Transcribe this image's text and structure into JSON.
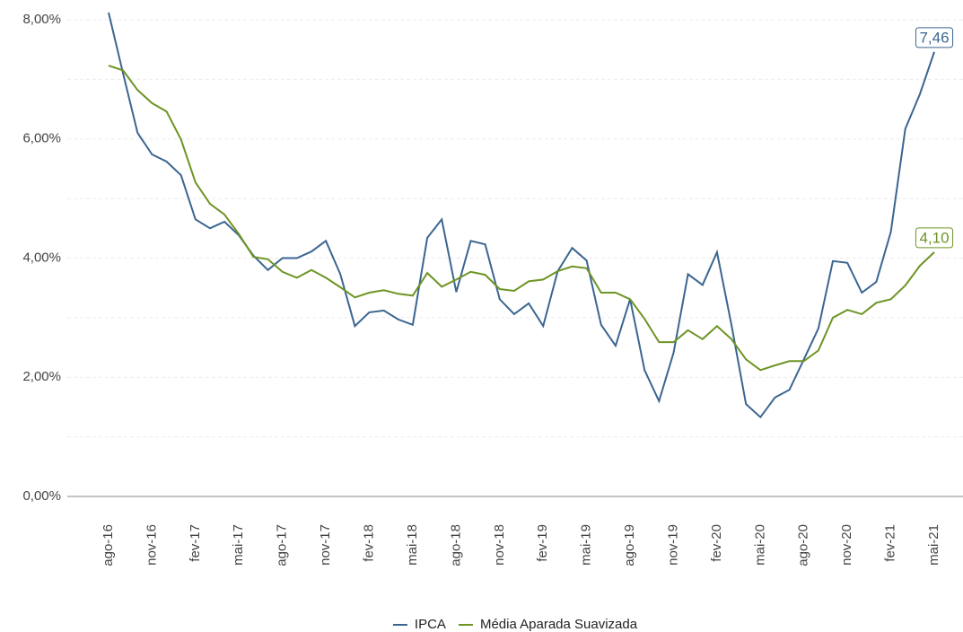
{
  "chart_data": {
    "type": "line",
    "categories": [
      "ago-16",
      null,
      null,
      "nov-16",
      null,
      null,
      "fev-17",
      null,
      null,
      "mai-17",
      null,
      null,
      "ago-17",
      null,
      null,
      "nov-17",
      null,
      null,
      "fev-18",
      null,
      null,
      "mai-18",
      null,
      null,
      "ago-18",
      null,
      null,
      "nov-18",
      null,
      null,
      "fev-19",
      null,
      null,
      "mai-19",
      null,
      null,
      "ago-19",
      null,
      null,
      "nov-19",
      null,
      null,
      "fev-20",
      null,
      null,
      "mai-20",
      null,
      null,
      "ago-20",
      null,
      null,
      "nov-20",
      null,
      null,
      "fev-21",
      null,
      null,
      "mai-21"
    ],
    "series": [
      {
        "name": "IPCA",
        "color": "#3b6591",
        "values": [
          8.12,
          7.1,
          6.1,
          5.74,
          5.62,
          5.39,
          4.65,
          4.5,
          4.61,
          4.38,
          4.04,
          3.8,
          4.0,
          4.0,
          4.11,
          4.29,
          3.73,
          2.86,
          3.09,
          3.12,
          2.97,
          2.88,
          4.34,
          4.65,
          3.43,
          4.29,
          4.23,
          3.31,
          3.06,
          3.24,
          2.86,
          3.78,
          4.17,
          3.96,
          2.88,
          2.53,
          3.31,
          2.12,
          1.6,
          2.41,
          3.73,
          3.55,
          4.1,
          2.88,
          1.55,
          1.33,
          1.66,
          1.79,
          2.3,
          2.82,
          3.95,
          3.92,
          3.42,
          3.6,
          4.44,
          6.17,
          6.75,
          7.46
        ],
        "value_labels": [
          null,
          null,
          null,
          null,
          null,
          null,
          null,
          null,
          null,
          null,
          null,
          null,
          null,
          null,
          null,
          null,
          null,
          null,
          null,
          null,
          null,
          null,
          null,
          null,
          null,
          null,
          null,
          null,
          null,
          null,
          null,
          null,
          null,
          null,
          null,
          null,
          null,
          null,
          null,
          null,
          null,
          null,
          null,
          null,
          null,
          null,
          null,
          null,
          null,
          null,
          null,
          null,
          null,
          null,
          null,
          null,
          null,
          "7,46"
        ]
      },
      {
        "name": "Média Aparada Suavizada",
        "color": "#6e9424",
        "values": [
          7.23,
          7.15,
          6.82,
          6.6,
          6.46,
          5.99,
          5.27,
          4.91,
          4.73,
          4.4,
          4.02,
          3.98,
          3.77,
          3.67,
          3.8,
          3.67,
          3.51,
          3.34,
          3.42,
          3.46,
          3.4,
          3.37,
          3.75,
          3.52,
          3.64,
          3.77,
          3.72,
          3.48,
          3.45,
          3.61,
          3.64,
          3.78,
          3.86,
          3.83,
          3.42,
          3.42,
          3.31,
          2.98,
          2.59,
          2.59,
          2.79,
          2.64,
          2.86,
          2.64,
          2.3,
          2.12,
          2.2,
          2.27,
          2.27,
          2.45,
          3.0,
          3.13,
          3.06,
          3.25,
          3.31,
          3.54,
          3.87,
          4.1
        ],
        "value_labels": [
          null,
          null,
          null,
          null,
          null,
          null,
          null,
          null,
          null,
          null,
          null,
          null,
          null,
          null,
          null,
          null,
          null,
          null,
          null,
          null,
          null,
          null,
          null,
          null,
          null,
          null,
          null,
          null,
          null,
          null,
          null,
          null,
          null,
          null,
          null,
          null,
          null,
          null,
          null,
          null,
          null,
          null,
          null,
          null,
          null,
          null,
          null,
          null,
          null,
          null,
          null,
          null,
          null,
          null,
          null,
          null,
          null,
          "4,10"
        ]
      }
    ],
    "ylim": [
      0,
      8.2
    ],
    "yticks": [
      {
        "value": 0,
        "label": "0,00%"
      },
      {
        "value": 2,
        "label": "2,00%"
      },
      {
        "value": 4,
        "label": "4,00%"
      },
      {
        "value": 6,
        "label": "6,00%"
      },
      {
        "value": 8,
        "label": "8,00%"
      }
    ],
    "minor_yticks": [
      1,
      3,
      5,
      7
    ],
    "grid": true,
    "legend": "bottom"
  }
}
